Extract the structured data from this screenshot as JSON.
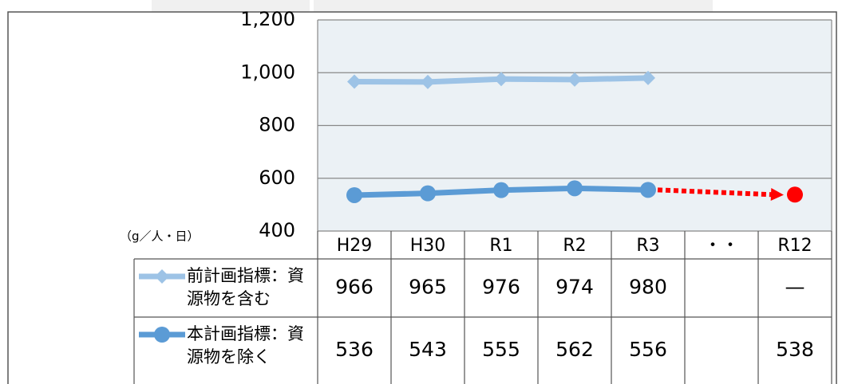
{
  "chart_data": {
    "type": "line",
    "unit_label": "（g／人・日）",
    "categories": [
      "H29",
      "H30",
      "R1",
      "R2",
      "R3",
      "・・",
      "R12"
    ],
    "series": [
      {
        "name": "前計画指標：資源物を含む",
        "color": "#9dc3e6",
        "marker": "diamond",
        "values": [
          966,
          965,
          976,
          974,
          980,
          null,
          null
        ],
        "value_labels": [
          null,
          null,
          null,
          null,
          null,
          null,
          "—"
        ]
      },
      {
        "name": "本計画指標：資源物を除く",
        "color": "#5b9bd5",
        "marker": "circle",
        "target_color": "#ff0000",
        "values": [
          536,
          543,
          555,
          562,
          556,
          null,
          538
        ]
      }
    ],
    "ylim": [
      400,
      1200
    ],
    "yticks": [
      400,
      600,
      800,
      {
        "value": 1000,
        "label": "1,000"
      },
      {
        "value": 1200,
        "label": "1,200"
      }
    ],
    "grid": true
  }
}
